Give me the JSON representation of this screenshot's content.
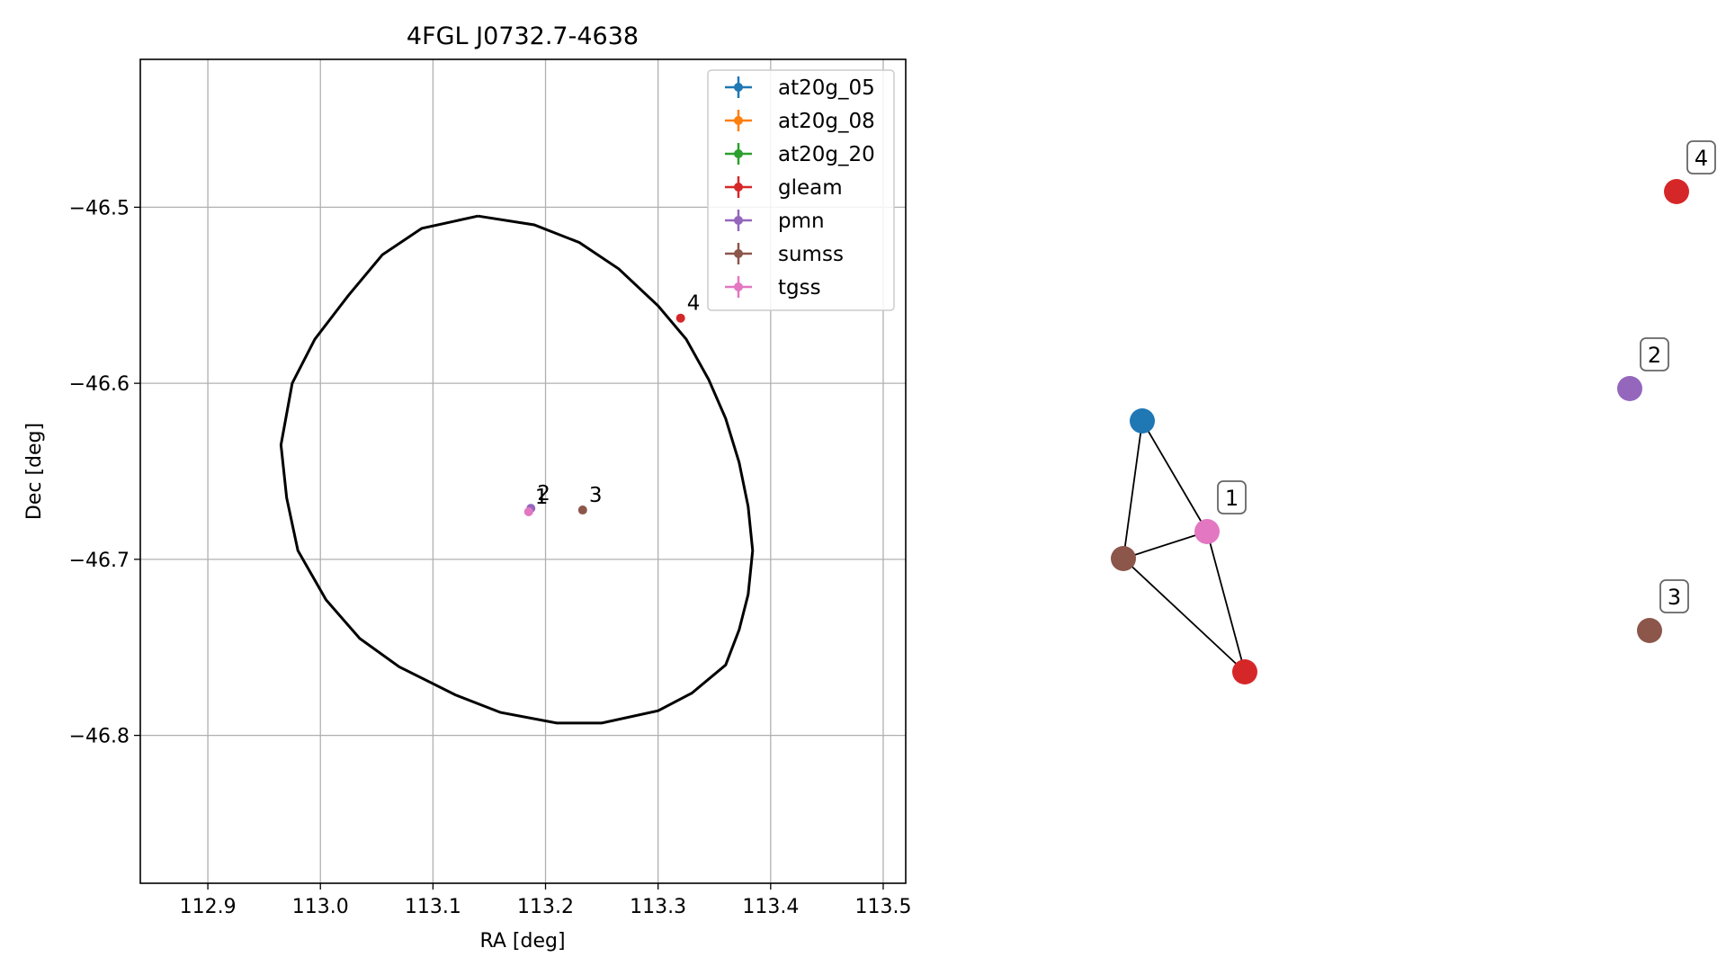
{
  "chart_data": [
    {
      "type": "scatter",
      "title": "4FGL J0732.7-4638",
      "xlabel": "RA [deg]",
      "ylabel": "Dec [deg]",
      "xlim": [
        112.84,
        113.52
      ],
      "ylim": [
        -46.884,
        -46.416
      ],
      "xticks": [
        112.9,
        113.0,
        113.1,
        113.2,
        113.3,
        113.4,
        113.5
      ],
      "xtick_labels": [
        "112.9",
        "113.0",
        "113.1",
        "113.2",
        "113.3",
        "113.4",
        "113.5"
      ],
      "yticks": [
        -46.5,
        -46.6,
        -46.7,
        -46.8
      ],
      "ytick_labels": [
        "−46.5",
        "−46.6",
        "−46.7",
        "−46.8"
      ],
      "grid": true,
      "legend_position": "top-right",
      "series": [
        {
          "name": "at20g_05",
          "color": "#1f77b4",
          "points": []
        },
        {
          "name": "at20g_08",
          "color": "#ff7f0e",
          "points": []
        },
        {
          "name": "at20g_20",
          "color": "#2ca02c",
          "points": []
        },
        {
          "name": "gleam",
          "color": "#d62728",
          "points": [
            {
              "x": 113.32,
              "y": -46.563
            }
          ]
        },
        {
          "name": "pmn",
          "color": "#9467bd",
          "points": [
            {
              "x": 113.187,
              "y": -46.671
            }
          ]
        },
        {
          "name": "sumss",
          "color": "#8c564b",
          "points": [
            {
              "x": 113.233,
              "y": -46.672
            }
          ]
        },
        {
          "name": "tgss",
          "color": "#e377c2",
          "points": [
            {
              "x": 113.185,
              "y": -46.673
            }
          ]
        }
      ],
      "annotations": [
        {
          "text": "1",
          "x": 113.185,
          "y": -46.673
        },
        {
          "text": "2",
          "x": 113.187,
          "y": -46.671
        },
        {
          "text": "3",
          "x": 113.233,
          "y": -46.672
        },
        {
          "text": "4",
          "x": 113.32,
          "y": -46.563
        }
      ],
      "ellipse": {
        "color": "#000000",
        "points": [
          [
            113.14,
            -46.505
          ],
          [
            113.19,
            -46.51
          ],
          [
            113.23,
            -46.52
          ],
          [
            113.265,
            -46.535
          ],
          [
            113.3,
            -46.556
          ],
          [
            113.325,
            -46.575
          ],
          [
            113.345,
            -46.598
          ],
          [
            113.36,
            -46.62
          ],
          [
            113.372,
            -46.645
          ],
          [
            113.38,
            -46.67
          ],
          [
            113.384,
            -46.695
          ],
          [
            113.38,
            -46.72
          ],
          [
            113.372,
            -46.74
          ],
          [
            113.36,
            -46.76
          ],
          [
            113.33,
            -46.776
          ],
          [
            113.3,
            -46.786
          ],
          [
            113.25,
            -46.793
          ],
          [
            113.21,
            -46.793
          ],
          [
            113.16,
            -46.787
          ],
          [
            113.12,
            -46.777
          ],
          [
            113.07,
            -46.761
          ],
          [
            113.035,
            -46.745
          ],
          [
            113.005,
            -46.723
          ],
          [
            112.98,
            -46.695
          ],
          [
            112.97,
            -46.665
          ],
          [
            112.965,
            -46.635
          ],
          [
            112.975,
            -46.6
          ],
          [
            112.995,
            -46.575
          ],
          [
            113.025,
            -46.55
          ],
          [
            113.055,
            -46.527
          ],
          [
            113.09,
            -46.512
          ],
          [
            113.14,
            -46.505
          ]
        ]
      }
    },
    {
      "type": "network",
      "nodes": [
        {
          "id": "at20g_05",
          "color": "#1f77b4",
          "label": ""
        },
        {
          "id": "tgss",
          "color": "#e377c2",
          "label": "1"
        },
        {
          "id": "sumss_a",
          "color": "#8c564b",
          "label": ""
        },
        {
          "id": "gleam_a",
          "color": "#d62728",
          "label": ""
        },
        {
          "id": "gleam_b",
          "color": "#d62728",
          "label": "4"
        },
        {
          "id": "pmn",
          "color": "#9467bd",
          "label": "2"
        },
        {
          "id": "sumss_b",
          "color": "#8c564b",
          "label": "3"
        }
      ],
      "edges": [
        [
          "at20g_05",
          "tgss"
        ],
        [
          "at20g_05",
          "sumss_a"
        ],
        [
          "sumss_a",
          "tgss"
        ],
        [
          "sumss_a",
          "gleam_a"
        ],
        [
          "tgss",
          "gleam_a"
        ]
      ]
    }
  ]
}
